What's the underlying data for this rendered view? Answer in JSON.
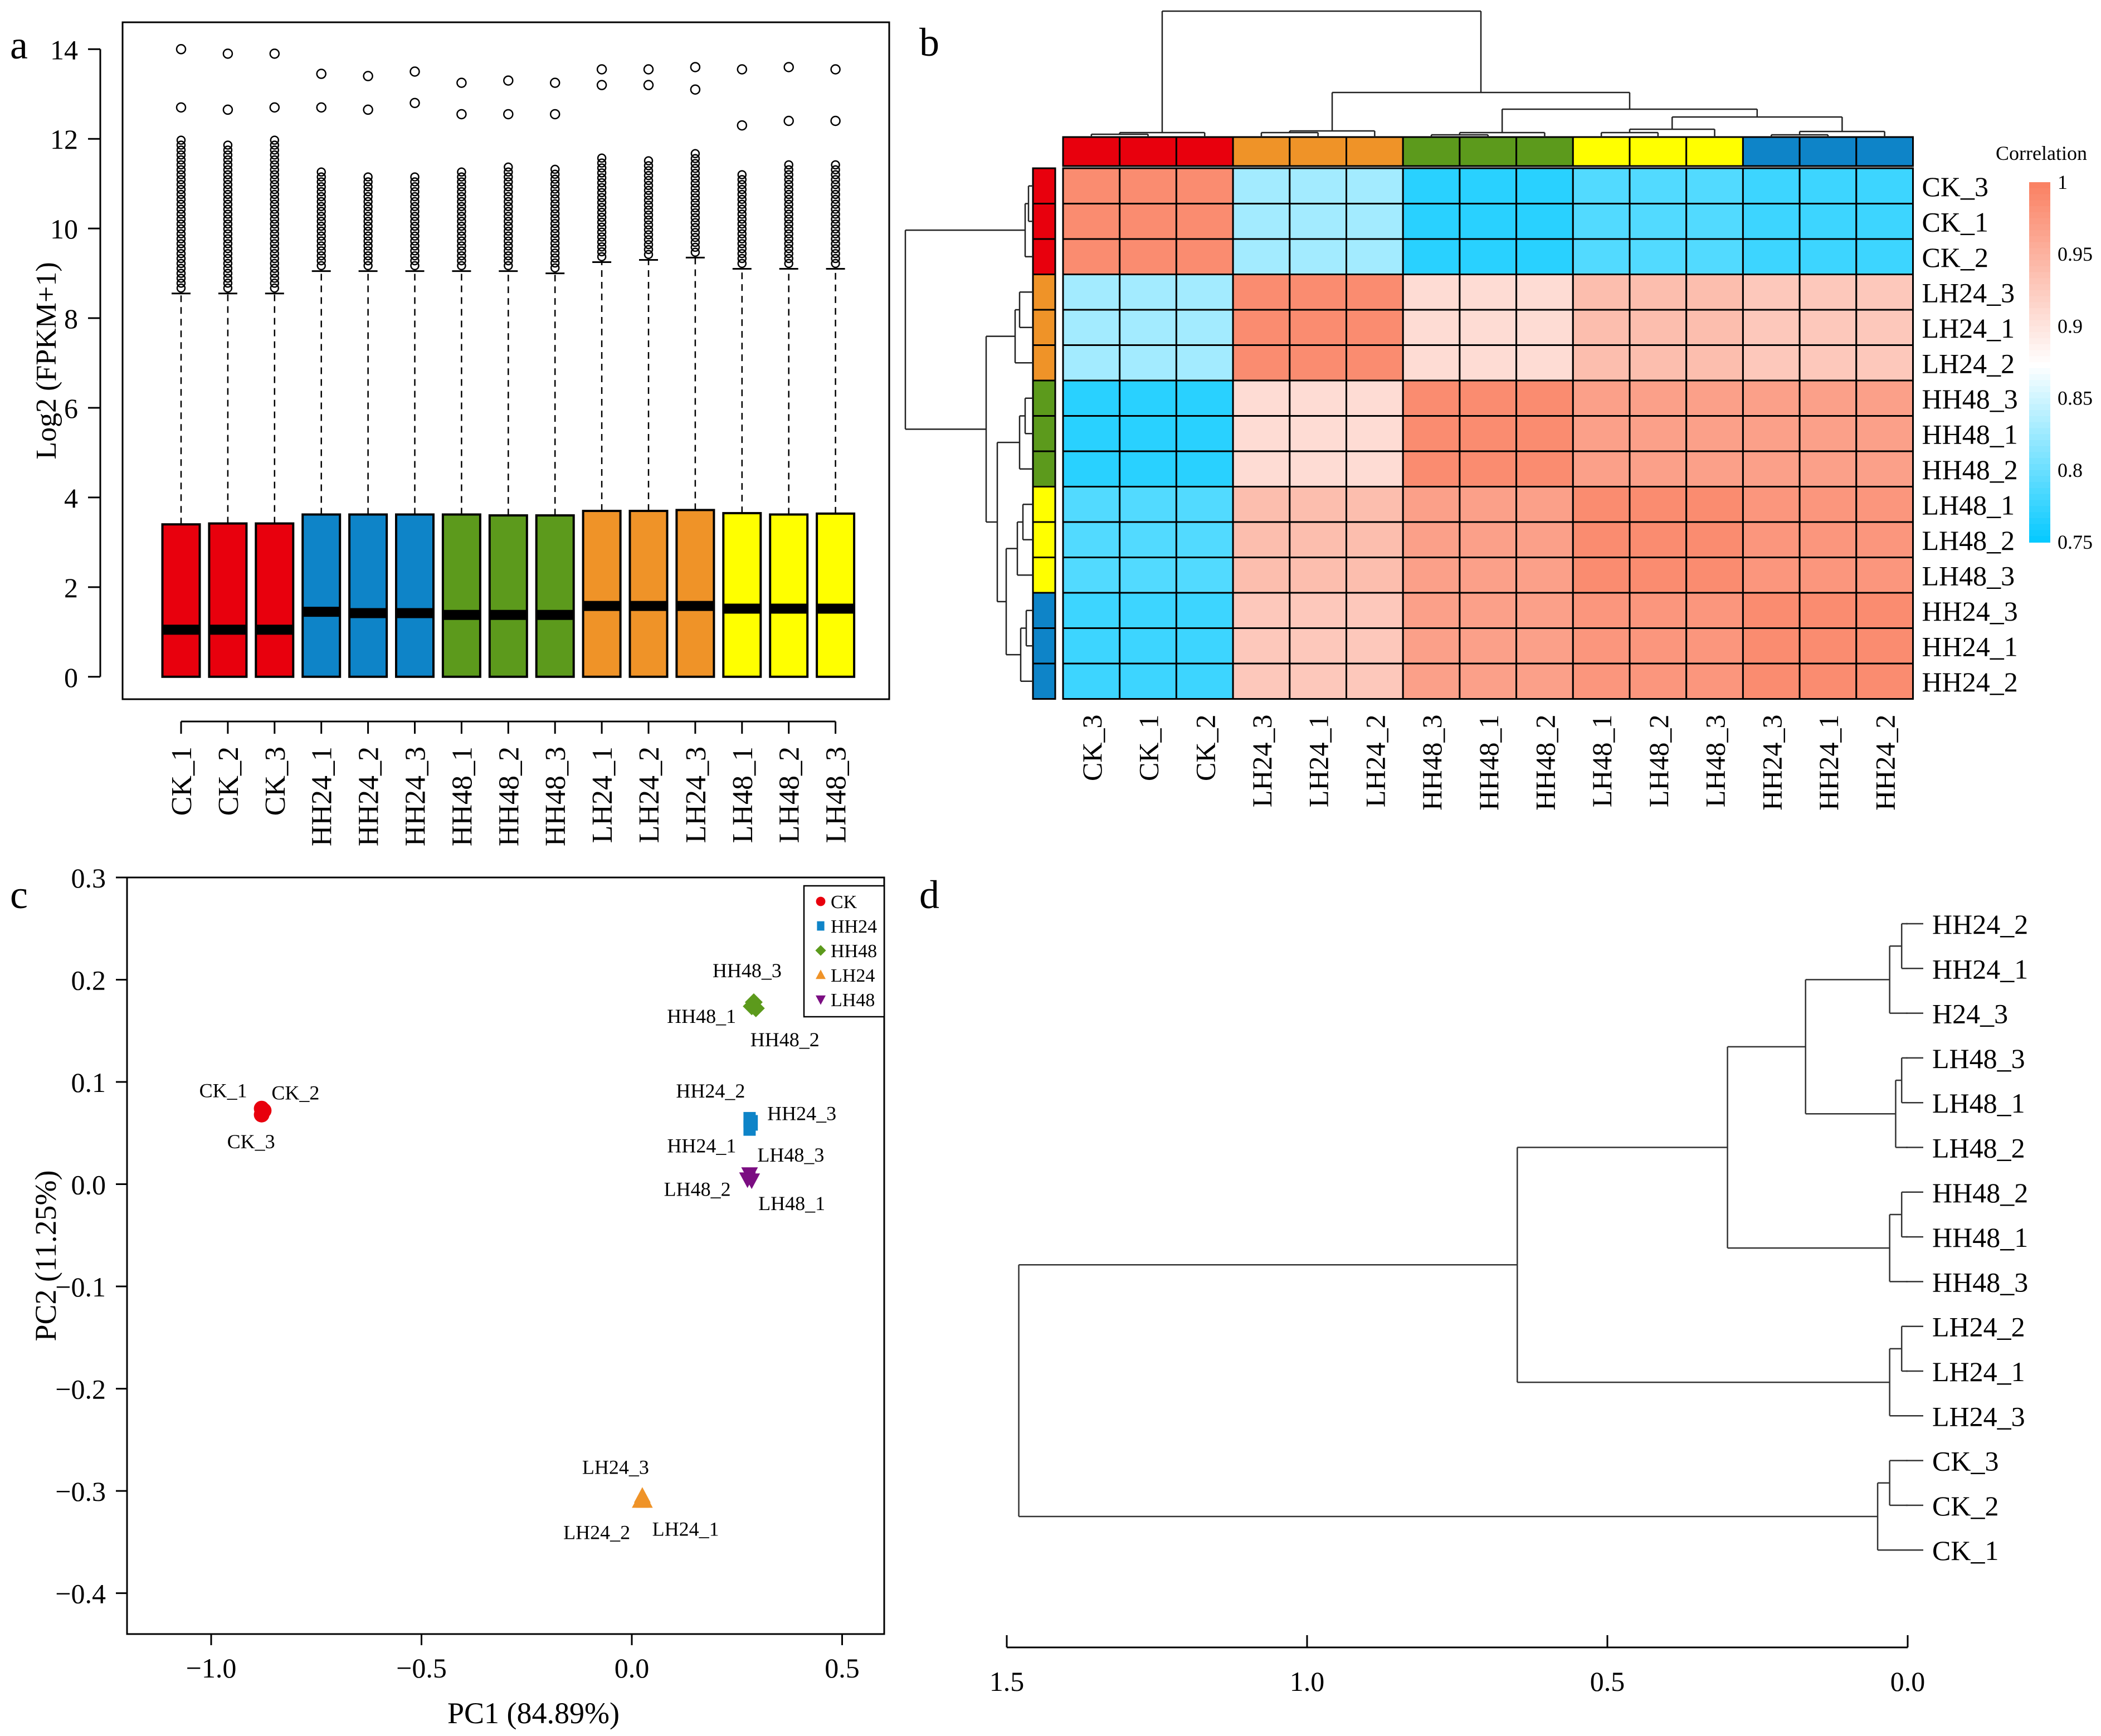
{
  "chart_data": [
    {
      "panel": "a",
      "type": "box",
      "ylabel": "Log2 (FPKM+1)",
      "ylim": [
        -0.5,
        14.6
      ],
      "yticks": [
        0,
        2,
        4,
        6,
        8,
        10,
        12,
        14
      ],
      "categories": [
        "CK_1",
        "CK_2",
        "CK_3",
        "HH24_1",
        "HH24_2",
        "HH24_3",
        "HH48_1",
        "HH48_2",
        "HH48_3",
        "LH24_1",
        "LH24_2",
        "LH24_3",
        "LH48_1",
        "LH48_2",
        "LH48_3"
      ],
      "groups": [
        "CK",
        "CK",
        "CK",
        "HH24",
        "HH24",
        "HH24",
        "HH48",
        "HH48",
        "HH48",
        "LH24",
        "LH24",
        "LH24",
        "LH48",
        "LH48",
        "LH48"
      ],
      "q1": [
        0,
        0,
        0,
        0,
        0,
        0,
        0,
        0,
        0,
        0,
        0,
        0,
        0,
        0,
        0
      ],
      "median": [
        1.05,
        1.05,
        1.05,
        1.45,
        1.42,
        1.42,
        1.38,
        1.38,
        1.38,
        1.58,
        1.58,
        1.58,
        1.52,
        1.52,
        1.52
      ],
      "q3": [
        3.4,
        3.42,
        3.42,
        3.62,
        3.62,
        3.62,
        3.62,
        3.6,
        3.6,
        3.7,
        3.7,
        3.72,
        3.65,
        3.62,
        3.64
      ],
      "whisker_high": [
        8.55,
        8.55,
        8.55,
        9.05,
        9.05,
        9.05,
        9.05,
        9.05,
        9.0,
        9.25,
        9.3,
        9.35,
        9.1,
        9.1,
        9.1
      ],
      "outlier_top": [
        14.0,
        13.9,
        13.9,
        13.45,
        13.4,
        13.5,
        13.25,
        13.3,
        13.25,
        13.55,
        13.55,
        13.6,
        13.55,
        13.6,
        13.55
      ],
      "outlier_second": [
        12.7,
        12.65,
        12.7,
        12.7,
        12.65,
        12.8,
        12.55,
        12.55,
        12.55,
        13.2,
        13.2,
        13.1,
        12.3,
        12.4,
        12.4
      ],
      "outlier_max": [
        12.0,
        11.9,
        12.0,
        11.3,
        11.2,
        11.2,
        11.3,
        11.4,
        11.4,
        11.6,
        11.6,
        11.7,
        11.3,
        11.5,
        11.5
      ],
      "group_colors": {
        "CK": "#e8000d",
        "HH24": "#0e84c8",
        "HH48": "#5c9a1c",
        "LH24": "#ef9328",
        "LH48": "#ffff00"
      }
    },
    {
      "panel": "b",
      "type": "heatmap",
      "legend_title": "Correlation",
      "legend_ticks": [
        1,
        0.95,
        0.9,
        0.85,
        0.8,
        0.75
      ],
      "columns": [
        "CK_3",
        "CK_1",
        "CK_2",
        "LH24_3",
        "LH24_1",
        "LH24_2",
        "HH48_3",
        "HH48_1",
        "HH48_2",
        "LH48_1",
        "LH48_2",
        "LH48_3",
        "HH24_3",
        "HH24_1",
        "HH24_2"
      ],
      "rows": [
        "CK_3",
        "CK_1",
        "CK_2",
        "LH24_3",
        "LH24_1",
        "LH24_2",
        "HH48_3",
        "HH48_1",
        "HH48_2",
        "LH48_1",
        "LH48_2",
        "LH48_3",
        "HH24_3",
        "HH24_1",
        "HH24_2"
      ],
      "column_groups": [
        "CK",
        "CK",
        "CK",
        "LH24",
        "LH24",
        "LH24",
        "HH48",
        "HH48",
        "HH48",
        "LH48",
        "LH48",
        "LH48",
        "HH24",
        "HH24",
        "HH24"
      ],
      "row_groups": [
        "CK",
        "CK",
        "CK",
        "LH24",
        "LH24",
        "LH24",
        "HH48",
        "HH48",
        "HH48",
        "LH48",
        "LH48",
        "LH48",
        "HH24",
        "HH24",
        "HH24"
      ],
      "block_matrix": [
        [
          0.99,
          0.83,
          0.77,
          0.79,
          0.78
        ],
        [
          0.83,
          0.99,
          0.91,
          0.94,
          0.93
        ],
        [
          0.77,
          0.91,
          0.99,
          0.97,
          0.97
        ],
        [
          0.79,
          0.94,
          0.97,
          0.99,
          0.98
        ],
        [
          0.78,
          0.93,
          0.97,
          0.98,
          0.99
        ]
      ],
      "block_order": [
        "CK",
        "LH24",
        "HH48",
        "LH48",
        "HH24"
      ]
    },
    {
      "panel": "c",
      "type": "scatter",
      "xlabel": "PC1 (84.89%)",
      "ylabel": "PC2 (11.25%)",
      "xlim": [
        -1.2,
        0.6
      ],
      "ylim": [
        -0.44,
        0.3
      ],
      "xticks": [
        -1.0,
        -0.5,
        0.0,
        0.5
      ],
      "xtick_labels": [
        "−1.0",
        "−0.5",
        "0.0",
        "0.5"
      ],
      "yticks": [
        0.3,
        0.2,
        0.1,
        0.0,
        -0.1,
        -0.2,
        -0.3,
        -0.4
      ],
      "ytick_labels": [
        "0.3",
        "0.2",
        "0.1",
        "0.0",
        "−0.1",
        "−0.2",
        "−0.3",
        "−0.4"
      ],
      "legend": [
        "CK",
        "HH24",
        "HH48",
        "LH24",
        "LH48"
      ],
      "legend_position": "top-right",
      "series": [
        {
          "name": "CK",
          "color": "#e8000d",
          "marker": "circle",
          "points": [
            {
              "label": "CK_1",
              "x": -0.88,
              "y": 0.074
            },
            {
              "label": "CK_2",
              "x": -0.875,
              "y": 0.072
            },
            {
              "label": "CK_3",
              "x": -0.88,
              "y": 0.068
            }
          ]
        },
        {
          "name": "HH24",
          "color": "#0e84c8",
          "marker": "square",
          "points": [
            {
              "label": "HH24_2",
              "x": 0.28,
              "y": 0.063
            },
            {
              "label": "HH24_3",
              "x": 0.285,
              "y": 0.06
            },
            {
              "label": "HH24_1",
              "x": 0.28,
              "y": 0.055
            }
          ]
        },
        {
          "name": "HH48",
          "color": "#5c9a1c",
          "marker": "diamond",
          "points": [
            {
              "label": "HH48_3",
              "x": 0.29,
              "y": 0.178
            },
            {
              "label": "HH48_1",
              "x": 0.285,
              "y": 0.174
            },
            {
              "label": "HH48_2",
              "x": 0.295,
              "y": 0.172
            }
          ]
        },
        {
          "name": "LH24",
          "color": "#ef9328",
          "marker": "triangle-up",
          "points": [
            {
              "label": "LH24_3",
              "x": 0.025,
              "y": -0.305
            },
            {
              "label": "LH24_2",
              "x": 0.02,
              "y": -0.31
            },
            {
              "label": "LH24_1",
              "x": 0.03,
              "y": -0.31
            }
          ]
        },
        {
          "name": "LH48",
          "color": "#7b0d82",
          "marker": "triangle-down",
          "points": [
            {
              "label": "LH48_3",
              "x": 0.28,
              "y": 0.01
            },
            {
              "label": "LH48_2",
              "x": 0.275,
              "y": 0.005
            },
            {
              "label": "LH48_1",
              "x": 0.285,
              "y": 0.004
            }
          ]
        }
      ]
    },
    {
      "panel": "d",
      "type": "dendrogram",
      "xlim": [
        1.5,
        0.0
      ],
      "xticks": [
        1.5,
        1.0,
        0.5,
        0.0
      ],
      "xtick_labels": [
        "1.5",
        "1.0",
        "0.5",
        "0.0"
      ],
      "leaves": [
        "HH24_2",
        "HH24_1",
        "H24_3",
        "LH48_3",
        "LH48_1",
        "LH48_2",
        "HH48_2",
        "HH48_1",
        "HH48_3",
        "LH24_2",
        "LH24_1",
        "LH24_3",
        "CK_3",
        "CK_2",
        "CK_1"
      ],
      "merges": [
        {
          "a": "HH24_2",
          "b": "HH24_1",
          "height": 0.01
        },
        {
          "a": "(HH24_2,HH24_1)",
          "b": "H24_3",
          "height": 0.03
        },
        {
          "a": "LH48_3",
          "b": "LH48_1",
          "height": 0.01
        },
        {
          "a": "(LH48_3,LH48_1)",
          "b": "LH48_2",
          "height": 0.02
        },
        {
          "a": "HH24 cluster",
          "b": "LH48 cluster",
          "height": 0.17
        },
        {
          "a": "HH48_2",
          "b": "HH48_1",
          "height": 0.01
        },
        {
          "a": "(HH48_2,HH48_1)",
          "b": "HH48_3",
          "height": 0.03
        },
        {
          "a": "HH24+LH48",
          "b": "HH48 cluster",
          "height": 0.3
        },
        {
          "a": "LH24_2",
          "b": "LH24_1",
          "height": 0.01
        },
        {
          "a": "(LH24_2,LH24_1)",
          "b": "LH24_3",
          "height": 0.03
        },
        {
          "a": "HH24+LH48+HH48",
          "b": "LH24 cluster",
          "height": 0.65
        },
        {
          "a": "CK_3",
          "b": "CK_2",
          "height": 0.03
        },
        {
          "a": "(CK_3,CK_2)",
          "b": "CK_1",
          "height": 0.05
        },
        {
          "a": "treatments",
          "b": "CK cluster",
          "height": 1.48
        }
      ]
    }
  ],
  "panel_labels": {
    "a": "a",
    "b": "b",
    "c": "c",
    "d": "d"
  }
}
